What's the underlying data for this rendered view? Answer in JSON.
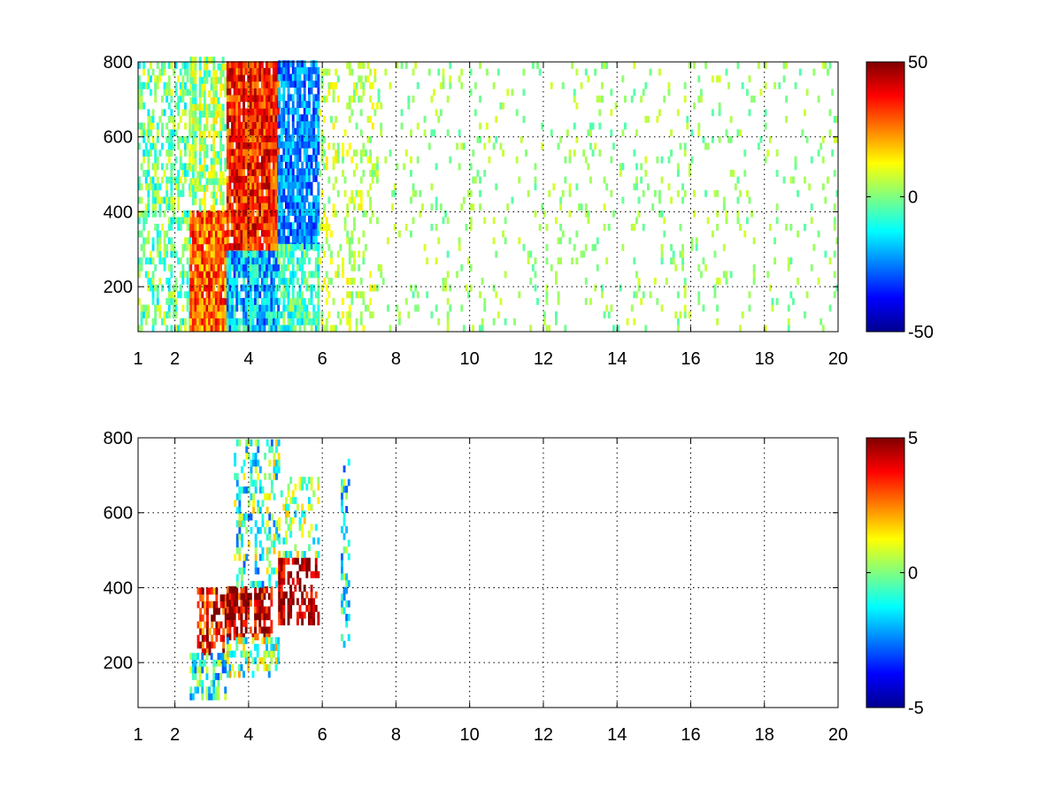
{
  "chart_data": [
    {
      "type": "heatmap",
      "title": "",
      "xlabel": "",
      "ylabel": "",
      "xlim": [
        1,
        20
      ],
      "ylim": [
        80,
        800
      ],
      "grid": true,
      "grid_style": "dotted",
      "x_ticks": [
        "1",
        "2",
        "4",
        "6",
        "8",
        "10",
        "12",
        "14",
        "16",
        "18",
        "20"
      ],
      "x_tick_values": [
        1,
        2,
        4,
        6,
        8,
        10,
        12,
        14,
        16,
        18,
        20
      ],
      "y_ticks": [
        "200",
        "400",
        "600",
        "800"
      ],
      "y_tick_values": [
        200,
        400,
        600,
        800
      ],
      "colormap": "jet",
      "colorbar": {
        "min": -50,
        "max": 50,
        "ticks": [
          "50",
          "0",
          "-50"
        ],
        "tick_values": [
          50,
          0,
          -50
        ],
        "location": "right"
      },
      "regions": [
        {
          "x": [
            1,
            2.4
          ],
          "y": [
            80,
            800
          ],
          "mean": -2,
          "spread": 14,
          "density": 0.45
        },
        {
          "x": [
            2.4,
            3.4
          ],
          "y": [
            80,
            400
          ],
          "mean": 28,
          "spread": 14,
          "density": 0.95
        },
        {
          "x": [
            2.4,
            3.4
          ],
          "y": [
            400,
            800
          ],
          "mean": 2,
          "spread": 14,
          "density": 0.55
        },
        {
          "x": [
            3.4,
            4.8
          ],
          "y": [
            280,
            800
          ],
          "mean": 34,
          "spread": 14,
          "density": 0.95
        },
        {
          "x": [
            3.4,
            4.8
          ],
          "y": [
            80,
            280
          ],
          "mean": -18,
          "spread": 16,
          "density": 0.85
        },
        {
          "x": [
            4.8,
            5.9
          ],
          "y": [
            300,
            800
          ],
          "mean": -24,
          "spread": 12,
          "density": 0.85
        },
        {
          "x": [
            4.8,
            5.9
          ],
          "y": [
            80,
            300
          ],
          "mean": -6,
          "spread": 12,
          "density": 0.6
        },
        {
          "x": [
            5.9,
            7.5
          ],
          "y": [
            80,
            800
          ],
          "mean": 6,
          "spread": 9,
          "density": 0.2
        },
        {
          "x": [
            7.5,
            20
          ],
          "y": [
            80,
            800
          ],
          "mean": 2,
          "spread": 7,
          "density": 0.07
        }
      ]
    },
    {
      "type": "heatmap",
      "title": "",
      "xlabel": "",
      "ylabel": "",
      "xlim": [
        1,
        20
      ],
      "ylim": [
        80,
        800
      ],
      "grid": true,
      "grid_style": "dotted",
      "x_ticks": [
        "1",
        "2",
        "4",
        "6",
        "8",
        "10",
        "12",
        "14",
        "16",
        "18",
        "20"
      ],
      "x_tick_values": [
        1,
        2,
        4,
        6,
        8,
        10,
        12,
        14,
        16,
        18,
        20
      ],
      "y_ticks": [
        "200",
        "400",
        "600",
        "800"
      ],
      "y_tick_values": [
        200,
        400,
        600,
        800
      ],
      "colormap": "jet",
      "colorbar": {
        "min": -5,
        "max": 5,
        "ticks": [
          "5",
          "0",
          "-5"
        ],
        "tick_values": [
          5,
          0,
          -5
        ],
        "location": "right"
      },
      "regions": [
        {
          "x": [
            2.6,
            3.4
          ],
          "y": [
            220,
            400
          ],
          "mean": 4,
          "spread": 2.5,
          "density": 0.55
        },
        {
          "x": [
            2.4,
            3.4
          ],
          "y": [
            100,
            220
          ],
          "mean": -1,
          "spread": 2,
          "density": 0.5
        },
        {
          "x": [
            3.4,
            4.6
          ],
          "y": [
            260,
            400
          ],
          "mean": 4.5,
          "spread": 2,
          "density": 0.65
        },
        {
          "x": [
            3.4,
            4.8
          ],
          "y": [
            160,
            260
          ],
          "mean": 0,
          "spread": 2.5,
          "density": 0.45
        },
        {
          "x": [
            3.6,
            4.8
          ],
          "y": [
            400,
            790
          ],
          "mean": -0.5,
          "spread": 2.5,
          "density": 0.3
        },
        {
          "x": [
            4.8,
            5.9
          ],
          "y": [
            300,
            480
          ],
          "mean": 4.5,
          "spread": 1.5,
          "density": 0.55
        },
        {
          "x": [
            4.8,
            5.9
          ],
          "y": [
            480,
            680
          ],
          "mean": 0,
          "spread": 2,
          "density": 0.3
        },
        {
          "x": [
            6.5,
            6.7
          ],
          "y": [
            240,
            740
          ],
          "mean": -1,
          "spread": 2,
          "density": 0.35
        }
      ]
    }
  ]
}
